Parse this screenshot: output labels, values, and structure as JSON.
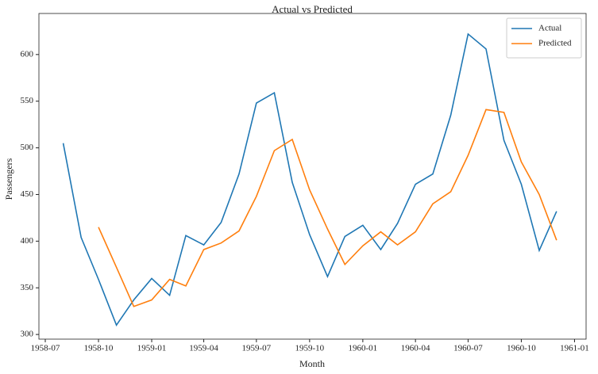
{
  "chart_data": {
    "type": "line",
    "title": "Actual vs Predicted",
    "x_label": "Month",
    "y_label": "Passengers",
    "x": [
      "1958-08",
      "1958-09",
      "1958-10",
      "1958-11",
      "1958-12",
      "1959-01",
      "1959-02",
      "1959-03",
      "1959-04",
      "1959-05",
      "1959-06",
      "1959-07",
      "1959-08",
      "1959-09",
      "1959-10",
      "1959-11",
      "1959-12",
      "1960-01",
      "1960-02",
      "1960-03",
      "1960-04",
      "1960-05",
      "1960-06",
      "1960-07",
      "1960-08",
      "1960-09",
      "1960-10",
      "1960-11",
      "1960-12"
    ],
    "series": [
      {
        "name": "Actual",
        "color": "#1f77b4",
        "values": [
          505,
          404,
          359,
          310,
          337,
          360,
          342,
          406,
          396,
          420,
          472,
          548,
          559,
          463,
          407,
          362,
          405,
          417,
          391,
          419,
          461,
          472,
          535,
          622,
          606,
          508,
          461,
          390,
          432
        ]
      },
      {
        "name": "Predicted",
        "color": "#ff7f0e",
        "values": [
          null,
          null,
          415,
          372,
          330,
          337,
          359,
          352,
          391,
          398,
          411,
          448,
          497,
          509,
          455,
          413,
          375,
          395,
          410,
          396,
          410,
          440,
          453,
          492,
          541,
          538,
          485,
          450,
          401
        ]
      }
    ],
    "xlim": [
      "1958-06-20",
      "1961-01-21"
    ],
    "xticks": [
      "1958-07",
      "1958-10",
      "1959-01",
      "1959-04",
      "1959-07",
      "1959-10",
      "1960-01",
      "1960-04",
      "1960-07",
      "1960-10",
      "1961-01"
    ],
    "ylim": [
      295,
      644
    ],
    "yticks": [
      300,
      350,
      400,
      450,
      500,
      550,
      600
    ],
    "legend": "upper-right",
    "grid": false
  }
}
